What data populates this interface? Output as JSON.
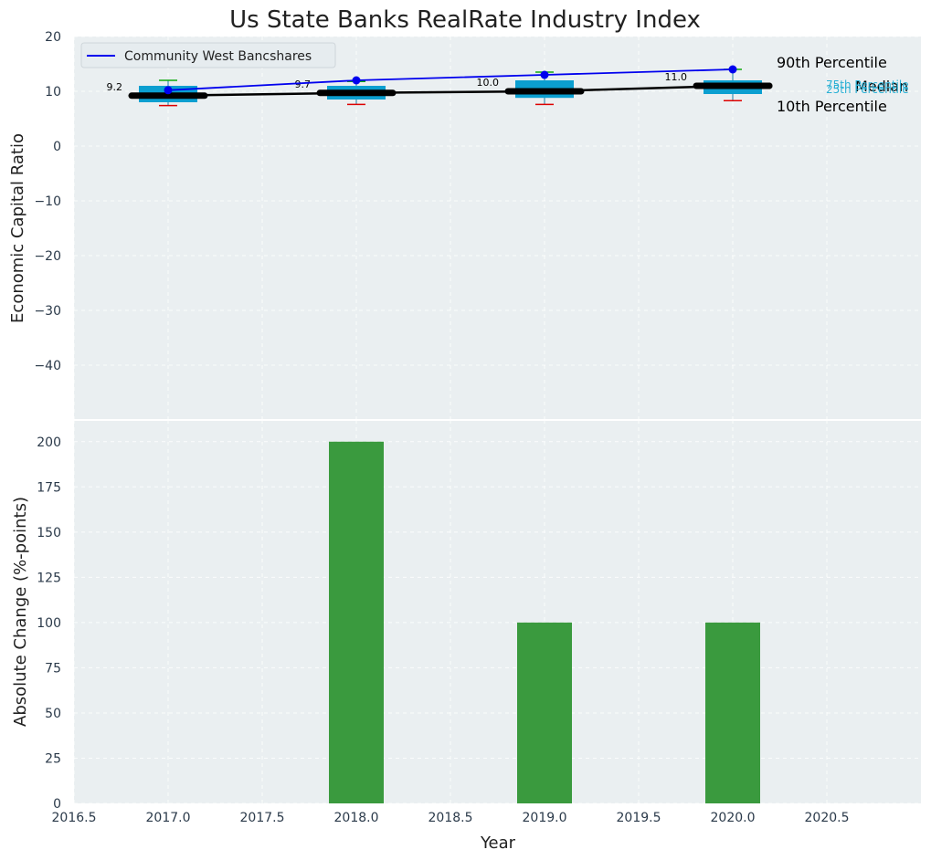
{
  "chart_data": [
    {
      "type": "box",
      "title": "Us State Banks RealRate Industry Index",
      "xlabel": "",
      "ylabel": "Economic Capital Ratio",
      "xlim": [
        2016.5,
        2021.0
      ],
      "ylim": [
        -50,
        20
      ],
      "yticks": [
        20,
        10,
        0,
        -10,
        -20,
        -30,
        -40
      ],
      "years": [
        2017,
        2018,
        2019,
        2020
      ],
      "p10": [
        7.4,
        7.6,
        7.6,
        8.3
      ],
      "p25": [
        8.0,
        8.5,
        8.8,
        9.5
      ],
      "median": [
        9.2,
        9.7,
        10.0,
        11.0
      ],
      "p75": [
        11.0,
        11.0,
        12.0,
        12.0
      ],
      "p90": [
        12.0,
        11.8,
        13.5,
        14.0
      ],
      "median_labels": [
        "9.2",
        "9.7",
        "10.0",
        "11.0"
      ],
      "series": [
        {
          "name": "Community West Bancshares",
          "values": [
            10.2,
            12.0,
            13.0,
            14.0
          ],
          "color": "#0000ee"
        }
      ],
      "legend": "top-left",
      "annotations": [
        "90th Percentile",
        "Median",
        "10th Percentile",
        "75th Percentile",
        "25th Percentile"
      ]
    },
    {
      "type": "bar",
      "xlabel": "Year",
      "ylabel": "Absolute Change (%-points)",
      "xlim": [
        2016.5,
        2021.0
      ],
      "ylim": [
        0,
        212
      ],
      "yticks": [
        0,
        25,
        50,
        75,
        100,
        125,
        150,
        175,
        200
      ],
      "xticks": [
        "2016.5",
        "2017.0",
        "2017.5",
        "2018.0",
        "2018.5",
        "2019.0",
        "2019.5",
        "2020.0",
        "2020.5"
      ],
      "x": [
        2018,
        2019,
        2020
      ],
      "values": [
        200,
        100,
        100
      ],
      "color": "#3a9a3e"
    }
  ],
  "colors": {
    "background": "#eaeff1",
    "box": "#0b9fd0",
    "median": "#000000",
    "whisker_low": "#dd0000",
    "whisker_high": "#11aa11",
    "bar": "#3a9a3e",
    "company": "#0000ee",
    "pct_25_75": "#2ab0d4"
  }
}
